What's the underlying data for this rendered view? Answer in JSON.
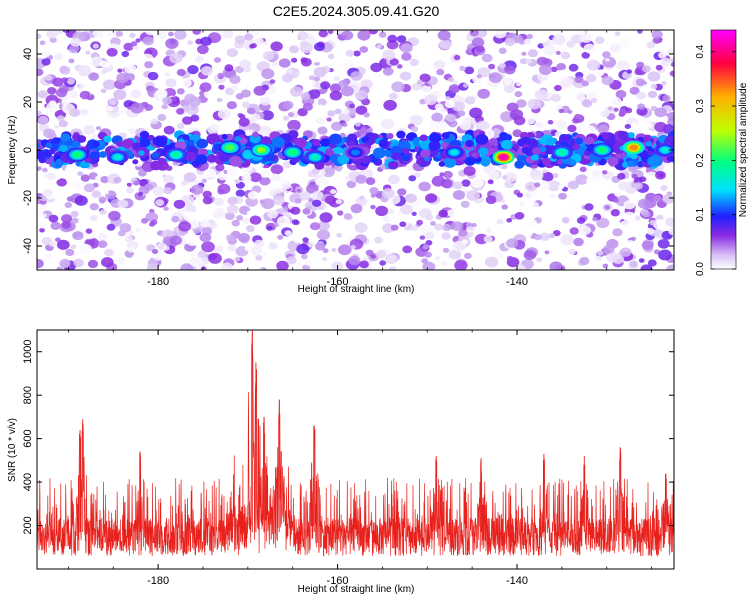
{
  "figure_title": "C2E5.2024.305.09.41.G20",
  "chart_data": [
    {
      "type": "heatmap",
      "title": "",
      "xlabel": "Height of straight line (km)",
      "ylabel": "Frequency (Hz)",
      "xlim": [
        -193.5,
        -122.5
      ],
      "ylim": [
        -50,
        50
      ],
      "xticks": [
        -180,
        -160,
        -140
      ],
      "yticks": [
        -40,
        -20,
        0,
        20,
        40
      ],
      "xtick_labels": [
        "-180",
        "-160",
        "-140"
      ],
      "ytick_labels": [
        "-40",
        "-20",
        "0",
        "20",
        "40"
      ],
      "colorbar": {
        "label": "Normalized spectral amplitude",
        "range": [
          0.0,
          0.44
        ],
        "ticks": [
          0.0,
          0.1,
          0.2,
          0.3,
          0.4
        ],
        "tick_labels": [
          "0.0",
          "0.1",
          "0.2",
          "0.3",
          "0.4"
        ],
        "colormap": [
          "#ffffff",
          "#c8a8f0",
          "#8a2be2",
          "#2020ff",
          "#00e0ff",
          "#00ff80",
          "#c0ff00",
          "#ffb000",
          "#ff0040",
          "#ff00ff"
        ]
      },
      "band": {
        "center_hz": 0,
        "halfwidth_hz": 6,
        "segments": [
          [
            -193.5,
            -151.5
          ],
          [
            -151,
            -122.5
          ]
        ],
        "hotspots": [
          {
            "x": -189,
            "y": -2,
            "v": 0.2
          },
          {
            "x": -184.5,
            "y": -3,
            "v": 0.16
          },
          {
            "x": -178,
            "y": -2,
            "v": 0.18
          },
          {
            "x": -172,
            "y": 1,
            "v": 0.22
          },
          {
            "x": -168.5,
            "y": 0,
            "v": 0.24
          },
          {
            "x": -165,
            "y": -1,
            "v": 0.2
          },
          {
            "x": -162.5,
            "y": -3,
            "v": 0.17
          },
          {
            "x": -158,
            "y": -1,
            "v": 0.12
          },
          {
            "x": -147,
            "y": -1,
            "v": 0.15
          },
          {
            "x": -141.5,
            "y": -3,
            "v": 0.42
          },
          {
            "x": -135,
            "y": -1,
            "v": 0.18
          },
          {
            "x": -130.5,
            "y": 0,
            "v": 0.2
          },
          {
            "x": -127,
            "y": 1,
            "v": 0.33
          },
          {
            "x": -123.5,
            "y": 0,
            "v": 0.16
          }
        ]
      }
    },
    {
      "type": "line",
      "title": "",
      "xlabel": "Height of straight line (km)",
      "ylabel": "SNR (10 * v/v)",
      "xlim": [
        -193.5,
        -122.5
      ],
      "ylim": [
        0,
        1100
      ],
      "xticks": [
        -180,
        -160,
        -140
      ],
      "yticks": [
        200,
        400,
        600,
        800,
        1000
      ],
      "xtick_labels": [
        "-180",
        "-160",
        "-140"
      ],
      "ytick_labels": [
        "200",
        "400",
        "600",
        "800",
        "1000"
      ],
      "series": [
        {
          "color": "#e8211d",
          "baseline": 170,
          "typical_range": [
            60,
            420
          ],
          "peaks": [
            {
              "x": -169.5,
              "y": 1100
            },
            {
              "x": -169.1,
              "y": 950
            },
            {
              "x": -166.5,
              "y": 780
            },
            {
              "x": -168.2,
              "y": 700
            },
            {
              "x": -162.6,
              "y": 660
            },
            {
              "x": -188.4,
              "y": 690
            },
            {
              "x": -188.7,
              "y": 640
            },
            {
              "x": -128.5,
              "y": 560
            },
            {
              "x": -182.0,
              "y": 540
            },
            {
              "x": -149.0,
              "y": 520
            },
            {
              "x": -144.0,
              "y": 510
            },
            {
              "x": -137.0,
              "y": 530
            },
            {
              "x": -132.5,
              "y": 520
            },
            {
              "x": -123.4,
              "y": 440
            }
          ]
        }
      ]
    }
  ]
}
